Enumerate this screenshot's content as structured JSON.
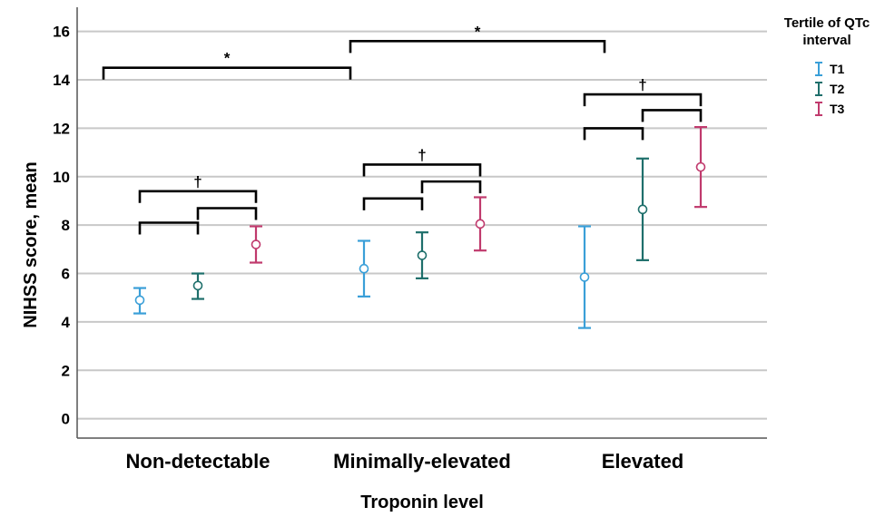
{
  "chart_data": {
    "type": "errorbar",
    "xlabel": "Troponin level",
    "ylabel": "NIHSS score, mean",
    "ylim": [
      -0.8,
      17
    ],
    "yticks": [
      0,
      2,
      4,
      6,
      8,
      10,
      12,
      14,
      16
    ],
    "grid": true,
    "categories": [
      "Non-detectable",
      "Minimally-elevated",
      "Elevated"
    ],
    "legend": {
      "title_line1": "Tertile of QTc",
      "title_line2": "interval",
      "placement": "top-right"
    },
    "series": [
      {
        "name": "T1",
        "color": "#3a9fd8",
        "mean": [
          4.9,
          6.2,
          5.85
        ],
        "lower": [
          4.35,
          5.05,
          3.75
        ],
        "upper": [
          5.4,
          7.35,
          7.95
        ]
      },
      {
        "name": "T2",
        "color": "#1e6f6b",
        "mean": [
          5.5,
          6.75,
          8.65
        ],
        "lower": [
          4.95,
          5.8,
          6.55
        ],
        "upper": [
          6.0,
          7.7,
          10.75
        ]
      },
      {
        "name": "T3",
        "color": "#c03a6d",
        "mean": [
          7.2,
          8.05,
          10.4
        ],
        "lower": [
          6.45,
          6.95,
          8.75
        ],
        "upper": [
          7.95,
          9.15,
          12.05
        ]
      }
    ],
    "annotations": {
      "bracket_level": [
        {
          "from": [
            0,
            0
          ],
          "to": [
            1,
            0
          ],
          "y": 14.5,
          "label": "*"
        },
        {
          "from": [
            1,
            0
          ],
          "to": [
            2,
            0
          ],
          "y": 15.6,
          "label": "*"
        }
      ],
      "bracket_pairs": [
        {
          "group": 0,
          "from": 0,
          "to": 1,
          "y": 8.1,
          "label": ""
        },
        {
          "group": 0,
          "from": 1,
          "to": 2,
          "y": 8.7,
          "label": ""
        },
        {
          "group": 0,
          "from": 0,
          "to": 2,
          "y": 9.4,
          "label": "†"
        },
        {
          "group": 1,
          "from": 0,
          "to": 1,
          "y": 9.1,
          "label": ""
        },
        {
          "group": 1,
          "from": 1,
          "to": 2,
          "y": 9.8,
          "label": ""
        },
        {
          "group": 1,
          "from": 0,
          "to": 2,
          "y": 10.5,
          "label": "†"
        },
        {
          "group": 2,
          "from": 0,
          "to": 1,
          "y": 12.0,
          "label": ""
        },
        {
          "group": 2,
          "from": 1,
          "to": 2,
          "y": 12.75,
          "label": ""
        },
        {
          "group": 2,
          "from": 0,
          "to": 2,
          "y": 13.4,
          "label": "†"
        }
      ]
    }
  }
}
